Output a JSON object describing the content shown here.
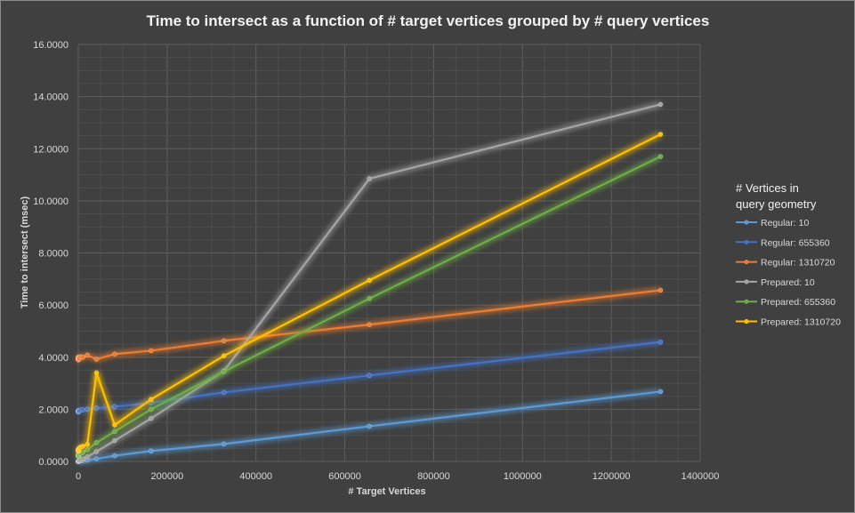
{
  "chart_data": {
    "type": "line",
    "title": "Time to intersect as a function of # target vertices grouped by # query vertices",
    "xlabel": "# Target Vertices",
    "ylabel": "Time to intersect (msec)",
    "xlim": [
      0,
      1400000
    ],
    "ylim": [
      0,
      16
    ],
    "x_ticks": [
      "0",
      "200000",
      "400000",
      "600000",
      "800000",
      "1000000",
      "1200000",
      "1400000"
    ],
    "y_ticks": [
      "0.0000",
      "2.0000",
      "4.0000",
      "6.0000",
      "8.0000",
      "10.0000",
      "12.0000",
      "14.0000",
      "16.0000"
    ],
    "grid": true,
    "legend_title": [
      "# Vertices in",
      "query geometry"
    ],
    "legend_position": "right",
    "x": [
      0,
      5,
      10,
      20,
      40,
      80,
      160,
      320,
      640,
      1280,
      2560,
      5120,
      10240,
      20480,
      40960,
      81920,
      163840,
      327680,
      655360,
      1310720
    ],
    "series": [
      {
        "name": "Regular: 10",
        "color": "#5b9bd5",
        "values": [
          0.0,
          0.0,
          0.0,
          0.0,
          0.0,
          0.0,
          0.0,
          0.01,
          0.01,
          0.01,
          0.02,
          0.02,
          0.03,
          0.05,
          0.1,
          0.22,
          0.4,
          0.67,
          1.35,
          2.68
        ]
      },
      {
        "name": "Regular: 655360",
        "color": "#4472c4",
        "values": [
          1.9,
          1.92,
          1.95,
          1.93,
          1.9,
          1.92,
          1.94,
          1.95,
          1.93,
          1.92,
          1.95,
          1.97,
          1.98,
          2.0,
          2.05,
          2.1,
          2.25,
          2.65,
          3.3,
          4.58
        ]
      },
      {
        "name": "Regular: 1310720",
        "color": "#ed7d31",
        "values": [
          3.95,
          3.92,
          3.9,
          3.95,
          4.0,
          3.98,
          3.97,
          3.95,
          3.9,
          3.92,
          3.96,
          4.02,
          4.0,
          4.08,
          3.92,
          4.12,
          4.25,
          4.63,
          5.25,
          6.57
        ]
      },
      {
        "name": "Prepared: 10",
        "color": "#a5a5a5",
        "values": [
          0.0,
          0.0,
          0.0,
          0.0,
          0.0,
          0.0,
          0.0,
          0.0,
          0.0,
          0.02,
          0.04,
          0.06,
          0.1,
          0.18,
          0.38,
          0.8,
          1.65,
          3.47,
          10.85,
          13.7
        ]
      },
      {
        "name": "Prepared: 655360",
        "color": "#70ad47",
        "values": [
          0.2,
          0.22,
          0.25,
          0.22,
          0.2,
          0.25,
          0.22,
          0.28,
          0.25,
          0.28,
          0.3,
          0.32,
          0.35,
          0.45,
          0.72,
          1.15,
          2.0,
          3.45,
          6.25,
          11.7
        ]
      },
      {
        "name": "Prepared: 1310720",
        "color": "#ffc000",
        "values": [
          0.4,
          0.42,
          0.45,
          0.42,
          0.4,
          0.45,
          0.42,
          0.48,
          0.45,
          0.48,
          0.52,
          0.55,
          0.58,
          0.65,
          3.4,
          1.4,
          2.38,
          4.05,
          6.95,
          12.55
        ]
      }
    ]
  }
}
